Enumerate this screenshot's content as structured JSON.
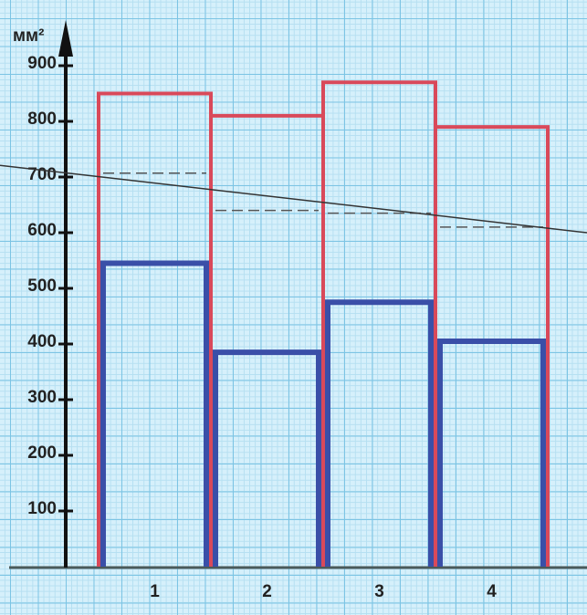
{
  "chart_data": {
    "type": "bar",
    "ylabel": "мм²",
    "categories": [
      "1",
      "2",
      "3",
      "4"
    ],
    "series": [
      {
        "color": "#d9495a",
        "values": [
          850,
          810,
          870,
          790
        ]
      },
      {
        "color": "#3a4fa8",
        "values": [
          545,
          385,
          475,
          405
        ]
      }
    ],
    "dashed_values": [
      707,
      640,
      635,
      610
    ],
    "trend_line": [
      721,
      600
    ],
    "ylim": [
      0,
      900
    ],
    "yticks": [
      100,
      200,
      300,
      400,
      500,
      600,
      700,
      800,
      900
    ]
  }
}
